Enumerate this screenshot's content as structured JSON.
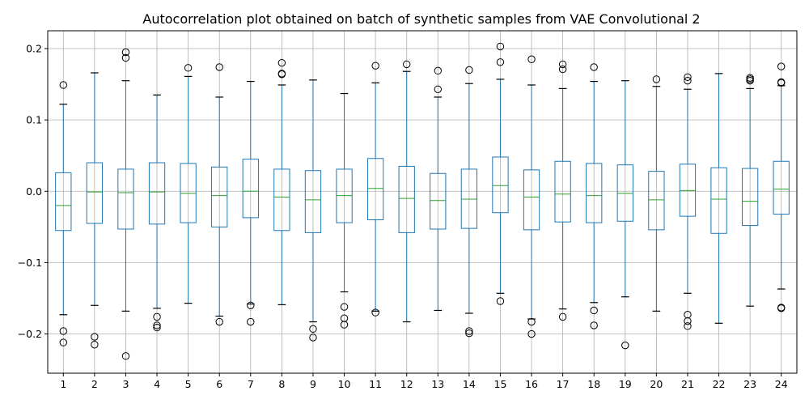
{
  "chart_data": {
    "type": "box",
    "title": "Autocorrelation plot obtained on batch of synthetic samples from VAE Convolutional 2",
    "xlabel": "",
    "ylabel": "",
    "ylim": [
      -0.255,
      0.225
    ],
    "yticks": [
      -0.2,
      -0.1,
      0.0,
      0.1,
      0.2
    ],
    "ytick_labels": [
      "−0.2",
      "−0.1",
      "0.0",
      "0.1",
      "0.2"
    ],
    "grid": true,
    "colors": {
      "box": "#1f77b4",
      "median": "#2ca02c",
      "grid": "#b0b0b0",
      "axis": "#000000"
    },
    "categories": [
      "1",
      "2",
      "3",
      "4",
      "5",
      "6",
      "7",
      "8",
      "9",
      "10",
      "11",
      "12",
      "13",
      "14",
      "15",
      "16",
      "17",
      "18",
      "19",
      "20",
      "21",
      "22",
      "23",
      "24"
    ],
    "boxes": [
      {
        "q1": -0.055,
        "median": -0.02,
        "q3": 0.026,
        "whisker_low": -0.173,
        "whisker_high": 0.122,
        "outliers": [
          0.149,
          -0.196,
          -0.212
        ]
      },
      {
        "q1": -0.045,
        "median": -0.001,
        "q3": 0.04,
        "whisker_low": -0.16,
        "whisker_high": 0.166,
        "outliers": [
          -0.204,
          -0.215
        ]
      },
      {
        "q1": -0.053,
        "median": -0.002,
        "q3": 0.031,
        "whisker_low": -0.168,
        "whisker_high": 0.155,
        "outliers": [
          0.195,
          0.187,
          -0.231
        ]
      },
      {
        "q1": -0.046,
        "median": -0.001,
        "q3": 0.04,
        "whisker_low": -0.164,
        "whisker_high": 0.135,
        "outliers": [
          -0.176,
          -0.188,
          -0.191
        ]
      },
      {
        "q1": -0.044,
        "median": -0.003,
        "q3": 0.039,
        "whisker_low": -0.157,
        "whisker_high": 0.161,
        "outliers": [
          0.173
        ]
      },
      {
        "q1": -0.05,
        "median": -0.006,
        "q3": 0.034,
        "whisker_low": -0.175,
        "whisker_high": 0.132,
        "outliers": [
          0.174,
          -0.183
        ]
      },
      {
        "q1": -0.037,
        "median": 0.0,
        "q3": 0.045,
        "whisker_low": -0.158,
        "whisker_high": 0.154,
        "outliers": [
          -0.16,
          -0.183
        ]
      },
      {
        "q1": -0.055,
        "median": -0.008,
        "q3": 0.031,
        "whisker_low": -0.159,
        "whisker_high": 0.149,
        "outliers": [
          0.18,
          0.165,
          0.164
        ]
      },
      {
        "q1": -0.058,
        "median": -0.012,
        "q3": 0.029,
        "whisker_low": -0.183,
        "whisker_high": 0.156,
        "outliers": [
          -0.193,
          -0.205
        ]
      },
      {
        "q1": -0.044,
        "median": -0.006,
        "q3": 0.031,
        "whisker_low": -0.141,
        "whisker_high": 0.137,
        "outliers": [
          -0.162,
          -0.178,
          -0.187
        ]
      },
      {
        "q1": -0.04,
        "median": 0.004,
        "q3": 0.046,
        "whisker_low": -0.168,
        "whisker_high": 0.152,
        "outliers": [
          0.176,
          -0.17
        ]
      },
      {
        "q1": -0.058,
        "median": -0.01,
        "q3": 0.035,
        "whisker_low": -0.183,
        "whisker_high": 0.168,
        "outliers": [
          0.178
        ]
      },
      {
        "q1": -0.053,
        "median": -0.013,
        "q3": 0.025,
        "whisker_low": -0.167,
        "whisker_high": 0.132,
        "outliers": [
          0.169,
          0.143
        ]
      },
      {
        "q1": -0.052,
        "median": -0.011,
        "q3": 0.031,
        "whisker_low": -0.171,
        "whisker_high": 0.151,
        "outliers": [
          0.17,
          -0.196,
          -0.199
        ]
      },
      {
        "q1": -0.03,
        "median": 0.008,
        "q3": 0.048,
        "whisker_low": -0.143,
        "whisker_high": 0.157,
        "outliers": [
          0.203,
          0.181,
          -0.154
        ]
      },
      {
        "q1": -0.054,
        "median": -0.008,
        "q3": 0.03,
        "whisker_low": -0.179,
        "whisker_high": 0.149,
        "outliers": [
          0.185,
          -0.183,
          -0.2
        ]
      },
      {
        "q1": -0.043,
        "median": -0.004,
        "q3": 0.042,
        "whisker_low": -0.165,
        "whisker_high": 0.144,
        "outliers": [
          0.178,
          0.171,
          -0.176
        ]
      },
      {
        "q1": -0.044,
        "median": -0.006,
        "q3": 0.039,
        "whisker_low": -0.156,
        "whisker_high": 0.154,
        "outliers": [
          0.174,
          -0.167,
          -0.188
        ]
      },
      {
        "q1": -0.042,
        "median": -0.003,
        "q3": 0.037,
        "whisker_low": -0.148,
        "whisker_high": 0.155,
        "outliers": [
          -0.216
        ]
      },
      {
        "q1": -0.054,
        "median": -0.012,
        "q3": 0.028,
        "whisker_low": -0.168,
        "whisker_high": 0.147,
        "outliers": [
          0.157
        ]
      },
      {
        "q1": -0.035,
        "median": 0.001,
        "q3": 0.038,
        "whisker_low": -0.143,
        "whisker_high": 0.143,
        "outliers": [
          0.16,
          0.155,
          -0.173,
          -0.182,
          -0.189
        ]
      },
      {
        "q1": -0.059,
        "median": -0.011,
        "q3": 0.033,
        "whisker_low": -0.185,
        "whisker_high": 0.165,
        "outliers": []
      },
      {
        "q1": -0.048,
        "median": -0.014,
        "q3": 0.032,
        "whisker_low": -0.161,
        "whisker_high": 0.144,
        "outliers": [
          0.159,
          0.157,
          0.155
        ]
      },
      {
        "q1": -0.032,
        "median": 0.003,
        "q3": 0.042,
        "whisker_low": -0.137,
        "whisker_high": 0.148,
        "outliers": [
          0.175,
          0.153,
          0.152,
          -0.163,
          -0.164
        ]
      }
    ]
  }
}
